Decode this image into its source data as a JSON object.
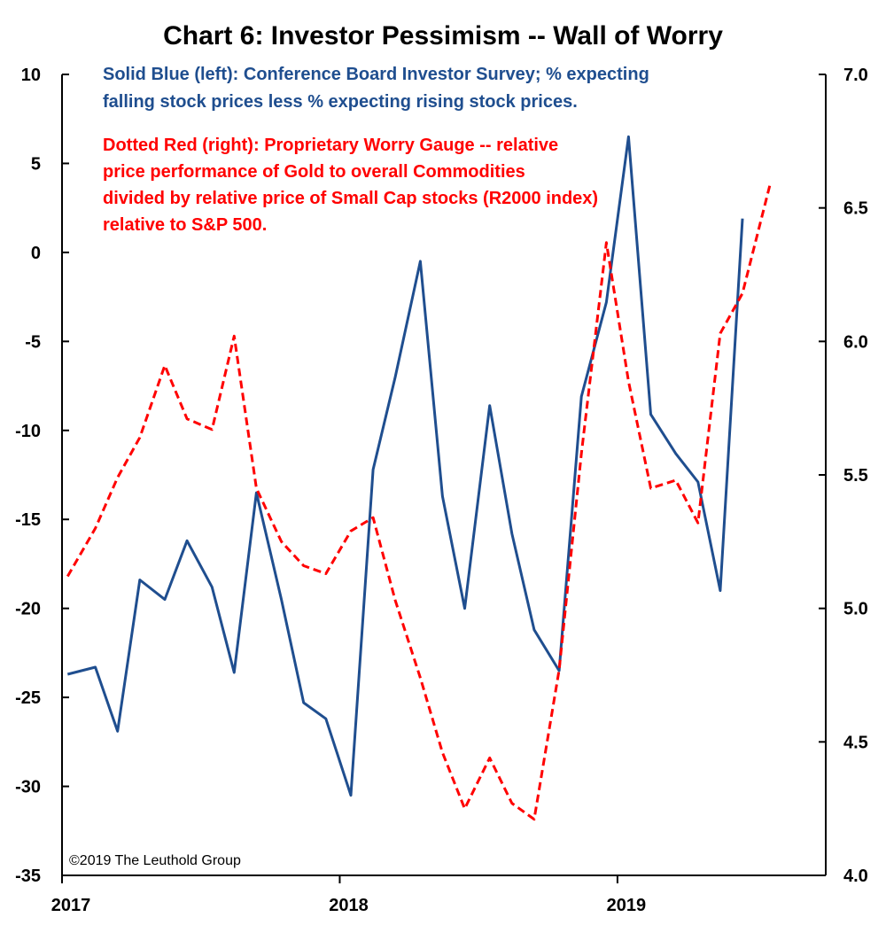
{
  "chart_data": {
    "type": "line",
    "title": "Chart 6: Investor Pessimism -- Wall of Worry",
    "x_tick_labels": [
      "2017",
      "2018",
      "2019"
    ],
    "x_tick_values": [
      2017,
      2018,
      2019
    ],
    "x_range": [
      2017,
      2019.75
    ],
    "y_left": {
      "range": [
        -35,
        10
      ],
      "ticks": [
        "10",
        "5",
        "0",
        "-5",
        "-10",
        "-15",
        "-20",
        "-25",
        "-30",
        "-35"
      ],
      "tick_values": [
        10,
        5,
        0,
        -5,
        -10,
        -15,
        -20,
        -25,
        -30,
        -35
      ]
    },
    "y_right": {
      "range": [
        4.0,
        7.0
      ],
      "ticks": [
        "7.0",
        "6.5",
        "6.0",
        "5.5",
        "5.0",
        "4.5",
        "4.0"
      ],
      "tick_values": [
        7.0,
        6.5,
        6.0,
        5.5,
        5.0,
        4.5,
        4.0
      ]
    },
    "grid": false,
    "annotations": {
      "blue_line1": "Solid Blue (left): Conference Board Investor Survey; % expecting",
      "blue_line2": "falling stock prices less % expecting rising stock prices.",
      "red_line1": "Dotted Red (right): Proprietary Worry Gauge -- relative",
      "red_line2": "price performance of Gold to overall Commodities",
      "red_line3": "divided by relative price of Small Cap stocks (R2000 index)",
      "red_line4": "relative to S&P 500.",
      "copyright": "©2019 The Leuthold Group"
    },
    "series": [
      {
        "axis": "left",
        "color": "#1f4e8f",
        "style": "solid",
        "x": [
          2017.02,
          2017.12,
          2017.2,
          2017.28,
          2017.37,
          2017.45,
          2017.54,
          2017.62,
          2017.7,
          2017.79,
          2017.87,
          2017.95,
          2018.04,
          2018.12,
          2018.2,
          2018.29,
          2018.37,
          2018.45,
          2018.54,
          2018.62,
          2018.7,
          2018.79,
          2018.87,
          2018.96,
          2019.04,
          2019.12,
          2019.21,
          2019.29,
          2019.37,
          2019.45
        ],
        "values": [
          -23.7,
          -23.3,
          -26.9,
          -18.4,
          -19.5,
          -16.2,
          -18.8,
          -23.6,
          -13.5,
          -19.5,
          -25.3,
          -26.2,
          -30.5,
          -12.2,
          -7.0,
          -0.5,
          -13.7,
          -20.0,
          -8.6,
          -15.8,
          -21.2,
          -23.5,
          -8.1,
          -2.8,
          6.5,
          -9.1,
          -11.3,
          -12.9,
          -19.0,
          1.9
        ]
      },
      {
        "axis": "right",
        "color": "#ff0000",
        "style": "dashed",
        "x": [
          2017.02,
          2017.12,
          2017.2,
          2017.28,
          2017.37,
          2017.45,
          2017.54,
          2017.62,
          2017.7,
          2017.79,
          2017.87,
          2017.95,
          2018.04,
          2018.12,
          2018.2,
          2018.29,
          2018.37,
          2018.45,
          2018.54,
          2018.62,
          2018.7,
          2018.79,
          2018.87,
          2018.96,
          2019.04,
          2019.12,
          2019.21,
          2019.29,
          2019.37,
          2019.45,
          2019.55
        ],
        "values": [
          5.12,
          5.3,
          5.49,
          5.64,
          5.91,
          5.71,
          5.67,
          6.02,
          5.45,
          5.25,
          5.16,
          5.13,
          5.29,
          5.34,
          5.03,
          4.74,
          4.46,
          4.25,
          4.44,
          4.27,
          4.21,
          4.77,
          5.58,
          6.37,
          5.85,
          5.45,
          5.48,
          5.32,
          6.03,
          6.18,
          6.59
        ]
      }
    ]
  }
}
